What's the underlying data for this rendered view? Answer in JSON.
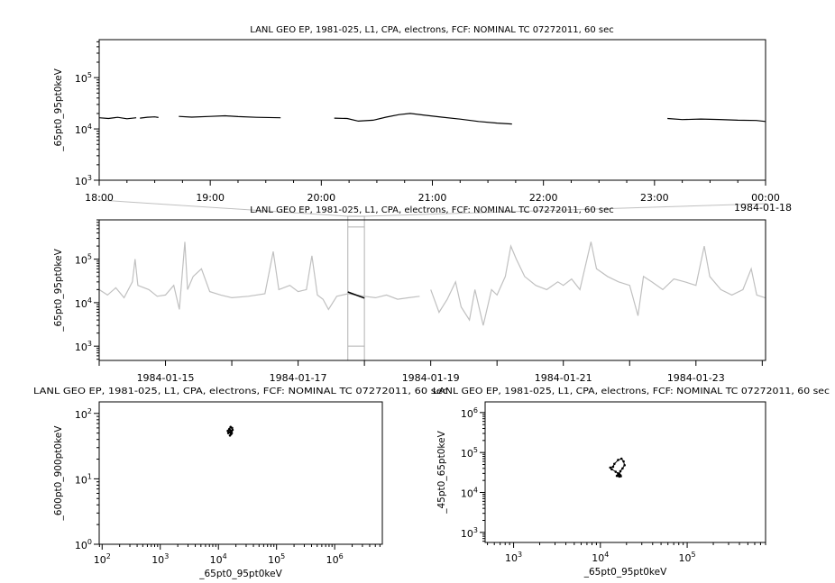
{
  "chart_data": [
    {
      "id": "top",
      "type": "line",
      "title": "LANL GEO EP, 1981-025, L1, CPA, electrons, FCF: NOMINAL TC 07272011, 60 sec",
      "xlabel": "",
      "ylabel": "_65pt0_95pt0keV",
      "x_type": "time",
      "xlim": [
        "1984-01-17T18:00",
        "1984-01-18T00:00"
      ],
      "ylim": [
        1000,
        550000
      ],
      "y_scale": "log",
      "x_tick_labels": [
        {
          "t": "1984-01-17T18:00",
          "label": "18:00"
        },
        {
          "t": "1984-01-17T19:00",
          "label": "19:00"
        },
        {
          "t": "1984-01-17T20:00",
          "label": "20:00"
        },
        {
          "t": "1984-01-17T21:00",
          "label": "21:00"
        },
        {
          "t": "1984-01-17T22:00",
          "label": "22:00"
        },
        {
          "t": "1984-01-17T23:00",
          "label": "23:00"
        },
        {
          "t": "1984-01-18T00:00",
          "label": "00:00",
          "sub": "1984-01-18"
        }
      ],
      "y_tick_labels": [
        {
          "v": 1000,
          "base": "10",
          "exp": "3"
        },
        {
          "v": 10000,
          "base": "10",
          "exp": "4"
        },
        {
          "v": 100000,
          "base": "10",
          "exp": "5"
        }
      ],
      "color": "#000000",
      "segments": [
        [
          [
            "1984-01-17T18:00",
            16500
          ],
          [
            "1984-01-17T18:05",
            16000
          ],
          [
            "1984-01-17T18:10",
            16800
          ],
          [
            "1984-01-17T18:15",
            15800
          ],
          [
            "1984-01-17T18:20",
            16500
          ]
        ],
        [
          [
            "1984-01-17T18:22",
            16200
          ],
          [
            "1984-01-17T18:26",
            16900
          ],
          [
            "1984-01-17T18:30",
            17200
          ],
          [
            "1984-01-17T18:32",
            16700
          ]
        ],
        [
          [
            "1984-01-17T18:43",
            17500
          ],
          [
            "1984-01-17T18:50",
            17000
          ],
          [
            "1984-01-17T19:00",
            17500
          ],
          [
            "1984-01-17T19:08",
            18000
          ],
          [
            "1984-01-17T19:15",
            17400
          ],
          [
            "1984-01-17T19:25",
            16800
          ],
          [
            "1984-01-17T19:38",
            16500
          ]
        ],
        [
          [
            "1984-01-17T20:07",
            16200
          ],
          [
            "1984-01-17T20:14",
            16000
          ],
          [
            "1984-01-17T20:20",
            14200
          ],
          [
            "1984-01-17T20:28",
            14800
          ],
          [
            "1984-01-17T20:35",
            17000
          ],
          [
            "1984-01-17T20:42",
            19000
          ],
          [
            "1984-01-17T20:48",
            20000
          ],
          [
            "1984-01-17T20:55",
            18700
          ],
          [
            "1984-01-17T21:05",
            17000
          ],
          [
            "1984-01-17T21:15",
            15500
          ],
          [
            "1984-01-17T21:25",
            14000
          ],
          [
            "1984-01-17T21:35",
            13000
          ],
          [
            "1984-01-17T21:43",
            12500
          ]
        ],
        [
          [
            "1984-01-17T23:07",
            16000
          ],
          [
            "1984-01-17T23:15",
            15200
          ],
          [
            "1984-01-17T23:25",
            15600
          ],
          [
            "1984-01-17T23:35",
            15300
          ],
          [
            "1984-01-17T23:45",
            14800
          ],
          [
            "1984-01-17T23:55",
            14600
          ],
          [
            "1984-01-18T00:00",
            14000
          ]
        ]
      ]
    },
    {
      "id": "middle",
      "type": "line",
      "title": "LANL GEO EP, 1981-025, L1, CPA, electrons, FCF: NOMINAL TC 07272011, 60 sec",
      "xlabel": "",
      "ylabel": "_65pt0_95pt0keV",
      "x_type": "time",
      "xlim": [
        "1984-01-14T00:00",
        "1984-01-24T01:12"
      ],
      "ylim": [
        470,
        800000
      ],
      "y_scale": "log",
      "x_tick_labels": [
        {
          "t": "1984-01-15T00:00",
          "label": "1984-01-15"
        },
        {
          "t": "1984-01-17T00:00",
          "label": "1984-01-17"
        },
        {
          "t": "1984-01-19T00:00",
          "label": "1984-01-19"
        },
        {
          "t": "1984-01-21T00:00",
          "label": "1984-01-21"
        },
        {
          "t": "1984-01-23T00:00",
          "label": "1984-01-23"
        }
      ],
      "y_tick_labels": [
        {
          "v": 1000,
          "base": "10",
          "exp": "3"
        },
        {
          "v": 10000,
          "base": "10",
          "exp": "4"
        },
        {
          "v": 100000,
          "base": "10",
          "exp": "5"
        }
      ],
      "color": "#c0c0c0",
      "highlight_color": "#000000",
      "highlight_range": [
        "1984-01-17T18:00",
        "1984-01-18T00:00"
      ],
      "segments": [
        [
          [
            "1984-01-14T00:00",
            20000
          ],
          [
            "1984-01-14T03:00",
            15000
          ],
          [
            "1984-01-14T06:00",
            22000
          ],
          [
            "1984-01-14T09:00",
            13000
          ],
          [
            "1984-01-14T12:00",
            30000
          ],
          [
            "1984-01-14T13:00",
            100000
          ],
          [
            "1984-01-14T14:00",
            25000
          ],
          [
            "1984-01-14T18:00",
            20000
          ],
          [
            "1984-01-14T21:00",
            14000
          ],
          [
            "1984-01-15T00:00",
            15000
          ],
          [
            "1984-01-15T03:00",
            25000
          ],
          [
            "1984-01-15T05:00",
            7000
          ],
          [
            "1984-01-15T07:00",
            250000
          ],
          [
            "1984-01-15T08:00",
            20000
          ],
          [
            "1984-01-15T10:00",
            40000
          ],
          [
            "1984-01-15T13:00",
            60000
          ],
          [
            "1984-01-15T16:00",
            18000
          ],
          [
            "1984-01-15T20:00",
            15000
          ],
          [
            "1984-01-16T00:00",
            13000
          ],
          [
            "1984-01-16T06:00",
            14000
          ],
          [
            "1984-01-16T12:00",
            16000
          ],
          [
            "1984-01-16T15:00",
            150000
          ],
          [
            "1984-01-16T17:00",
            20000
          ],
          [
            "1984-01-16T21:00",
            25000
          ],
          [
            "1984-01-17T00:00",
            18000
          ],
          [
            "1984-01-17T03:00",
            20000
          ],
          [
            "1984-01-17T05:00",
            120000
          ],
          [
            "1984-01-17T07:00",
            15000
          ],
          [
            "1984-01-17T09:00",
            12000
          ],
          [
            "1984-01-17T11:00",
            7000
          ],
          [
            "1984-01-17T14:00",
            14000
          ],
          [
            "1984-01-17T18:00",
            16000
          ],
          [
            "1984-01-18T00:00",
            14000
          ],
          [
            "1984-01-18T04:00",
            13000
          ],
          [
            "1984-01-18T08:00",
            15000
          ],
          [
            "1984-01-18T12:00",
            12000
          ],
          [
            "1984-01-18T16:00",
            13000
          ],
          [
            "1984-01-18T20:00",
            14000
          ]
        ],
        [
          [
            "1984-01-19T00:00",
            20000
          ],
          [
            "1984-01-19T03:00",
            6000
          ],
          [
            "1984-01-19T06:00",
            12000
          ],
          [
            "1984-01-19T09:00",
            30000
          ],
          [
            "1984-01-19T11:00",
            8000
          ],
          [
            "1984-01-19T14:00",
            4000
          ],
          [
            "1984-01-19T16:00",
            20000
          ],
          [
            "1984-01-19T19:00",
            3000
          ],
          [
            "1984-01-19T22:00",
            20000
          ],
          [
            "1984-01-20T00:00",
            15000
          ],
          [
            "1984-01-20T03:00",
            40000
          ],
          [
            "1984-01-20T05:00",
            200000
          ],
          [
            "1984-01-20T07:00",
            100000
          ],
          [
            "1984-01-20T10:00",
            40000
          ],
          [
            "1984-01-20T14:00",
            25000
          ],
          [
            "1984-01-20T18:00",
            20000
          ],
          [
            "1984-01-20T22:00",
            30000
          ],
          [
            "1984-01-21T00:00",
            25000
          ],
          [
            "1984-01-21T03:00",
            35000
          ],
          [
            "1984-01-21T06:00",
            20000
          ],
          [
            "1984-01-21T10:00",
            250000
          ],
          [
            "1984-01-21T12:00",
            60000
          ],
          [
            "1984-01-21T16:00",
            40000
          ],
          [
            "1984-01-21T20:00",
            30000
          ],
          [
            "1984-01-22T00:00",
            25000
          ],
          [
            "1984-01-22T03:00",
            5000
          ],
          [
            "1984-01-22T05:00",
            40000
          ],
          [
            "1984-01-22T08:00",
            30000
          ],
          [
            "1984-01-22T12:00",
            20000
          ],
          [
            "1984-01-22T16:00",
            35000
          ],
          [
            "1984-01-22T20:00",
            30000
          ],
          [
            "1984-01-23T00:00",
            25000
          ],
          [
            "1984-01-23T03:00",
            200000
          ],
          [
            "1984-01-23T05:00",
            40000
          ],
          [
            "1984-01-23T09:00",
            20000
          ],
          [
            "1984-01-23T13:00",
            15000
          ],
          [
            "1984-01-23T17:00",
            20000
          ],
          [
            "1984-01-23T20:00",
            60000
          ],
          [
            "1984-01-23T22:00",
            15000
          ],
          [
            "1984-01-24T01:00",
            13000
          ]
        ]
      ]
    },
    {
      "id": "bottom-left",
      "type": "scatter",
      "title": "LANL GEO EP, 1981-025, L1, CPA, electrons, FCF: NOMINAL TC 07272011, 60 sec",
      "xlabel": "_65pt0_95pt0keV",
      "ylabel": "_600pt0_900pt0keV",
      "x_scale": "log",
      "y_scale": "log",
      "xlim": [
        89,
        6600000
      ],
      "ylim": [
        1,
        150
      ],
      "x_tick_labels": [
        {
          "v": 100,
          "base": "10",
          "exp": "2"
        },
        {
          "v": 1000,
          "base": "10",
          "exp": "3"
        },
        {
          "v": 10000,
          "base": "10",
          "exp": "4"
        },
        {
          "v": 100000,
          "base": "10",
          "exp": "5"
        },
        {
          "v": 1000000,
          "base": "10",
          "exp": "6"
        }
      ],
      "y_tick_labels": [
        {
          "v": 1,
          "base": "10",
          "exp": "0"
        },
        {
          "v": 10,
          "base": "10",
          "exp": "1"
        },
        {
          "v": 100,
          "base": "10",
          "exp": "2"
        }
      ],
      "points": [
        [
          15000,
          52
        ],
        [
          16000,
          55
        ],
        [
          17000,
          50
        ],
        [
          15500,
          58
        ],
        [
          16500,
          48
        ],
        [
          14500,
          54
        ],
        [
          17500,
          56
        ],
        [
          16200,
          62
        ],
        [
          15800,
          46
        ],
        [
          16800,
          53
        ],
        [
          14800,
          50
        ],
        [
          17200,
          60
        ],
        [
          16000,
          51
        ],
        [
          15300,
          57
        ]
      ]
    },
    {
      "id": "bottom-right",
      "type": "line",
      "title": "LANL GEO EP, 1981-025, L1, CPA, electrons, FCF: NOMINAL TC 07272011, 60 sec",
      "xlabel": "_65pt0_95pt0keV",
      "ylabel": "_45pt0_65pt0keV",
      "x_scale": "log",
      "y_scale": "log",
      "xlim": [
        470,
        800000
      ],
      "ylim": [
        560,
        1850000
      ],
      "x_tick_labels": [
        {
          "v": 1000,
          "base": "10",
          "exp": "3"
        },
        {
          "v": 10000,
          "base": "10",
          "exp": "4"
        },
        {
          "v": 100000,
          "base": "10",
          "exp": "5"
        }
      ],
      "y_tick_labels": [
        {
          "v": 1000,
          "base": "10",
          "exp": "3"
        },
        {
          "v": 10000,
          "base": "10",
          "exp": "4"
        },
        {
          "v": 100000,
          "base": "10",
          "exp": "5"
        },
        {
          "v": 1000000,
          "base": "10",
          "exp": "6"
        }
      ],
      "points": [
        [
          16500,
          25000
        ],
        [
          17000,
          27000
        ],
        [
          15500,
          26000
        ],
        [
          16000,
          30000
        ],
        [
          15000,
          33000
        ],
        [
          13500,
          38000
        ],
        [
          13000,
          42000
        ],
        [
          14000,
          44000
        ],
        [
          14500,
          52000
        ],
        [
          16000,
          65000
        ],
        [
          17500,
          70000
        ],
        [
          18500,
          60000
        ],
        [
          19000,
          48000
        ],
        [
          18000,
          40000
        ],
        [
          17000,
          34000
        ],
        [
          16500,
          29000
        ],
        [
          15800,
          26500
        ],
        [
          17200,
          25500
        ]
      ]
    }
  ]
}
